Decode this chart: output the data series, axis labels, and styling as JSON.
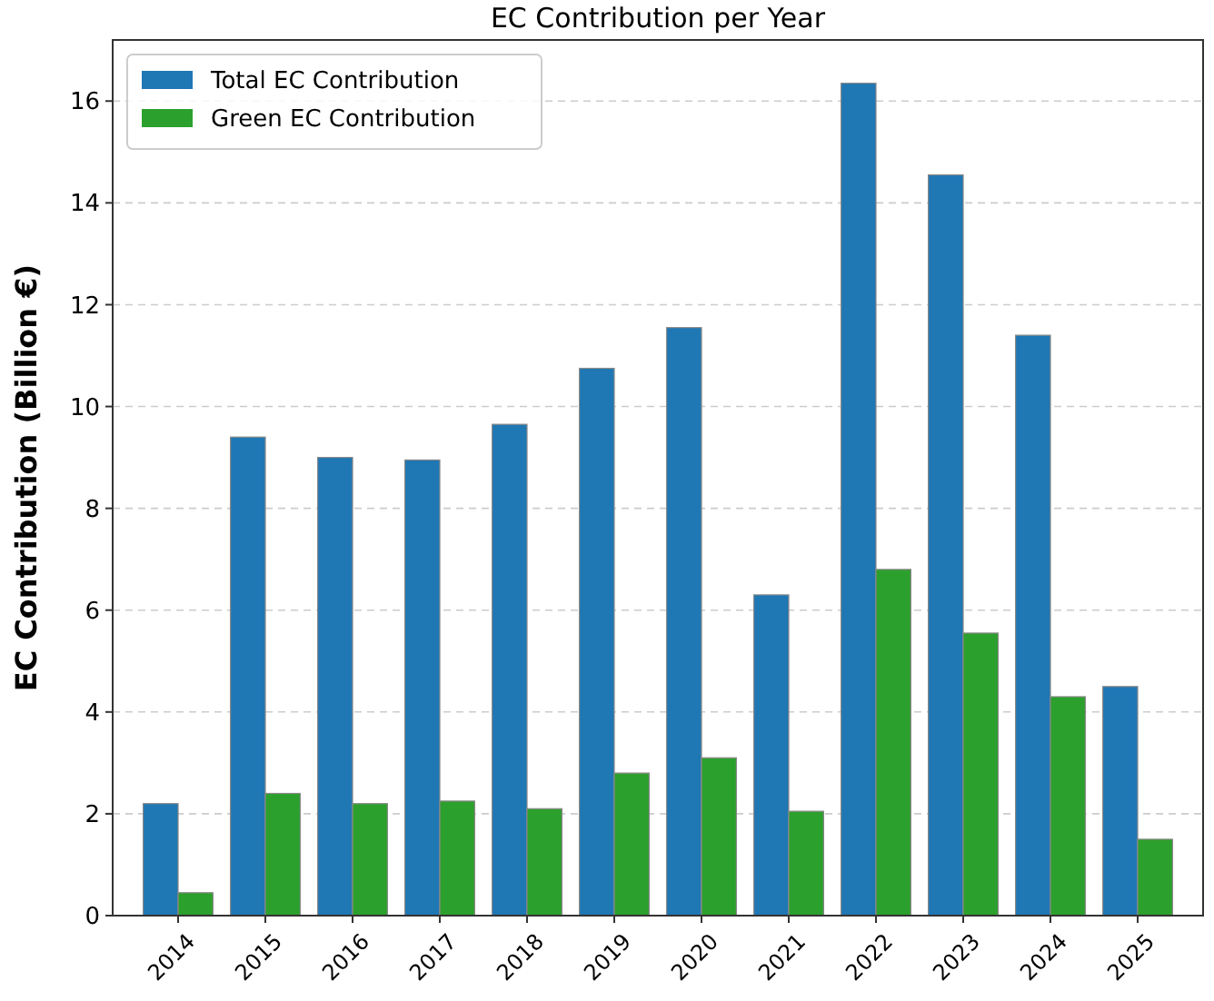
{
  "chart_data": {
    "type": "bar",
    "title": "EC Contribution per Year",
    "ylabel": "EC Contribution (Billion €)",
    "categories": [
      "2014",
      "2015",
      "2016",
      "2017",
      "2018",
      "2019",
      "2020",
      "2021",
      "2022",
      "2023",
      "2024",
      "2025"
    ],
    "series": [
      {
        "name": "Total EC Contribution",
        "color": "#1f77b4",
        "values": [
          2.2,
          9.4,
          9.0,
          8.95,
          9.65,
          10.75,
          11.55,
          6.3,
          16.35,
          14.55,
          11.4,
          4.5
        ]
      },
      {
        "name": "Green EC Contribution",
        "color": "#2ca02c",
        "values": [
          0.45,
          2.4,
          2.2,
          2.25,
          2.1,
          2.8,
          3.1,
          2.05,
          6.8,
          5.55,
          4.3,
          1.5
        ]
      }
    ],
    "ylim": [
      0,
      17.2
    ],
    "yticks": [
      0,
      2,
      4,
      6,
      8,
      10,
      12,
      14,
      16
    ],
    "grid": "y",
    "legend": "top left"
  }
}
